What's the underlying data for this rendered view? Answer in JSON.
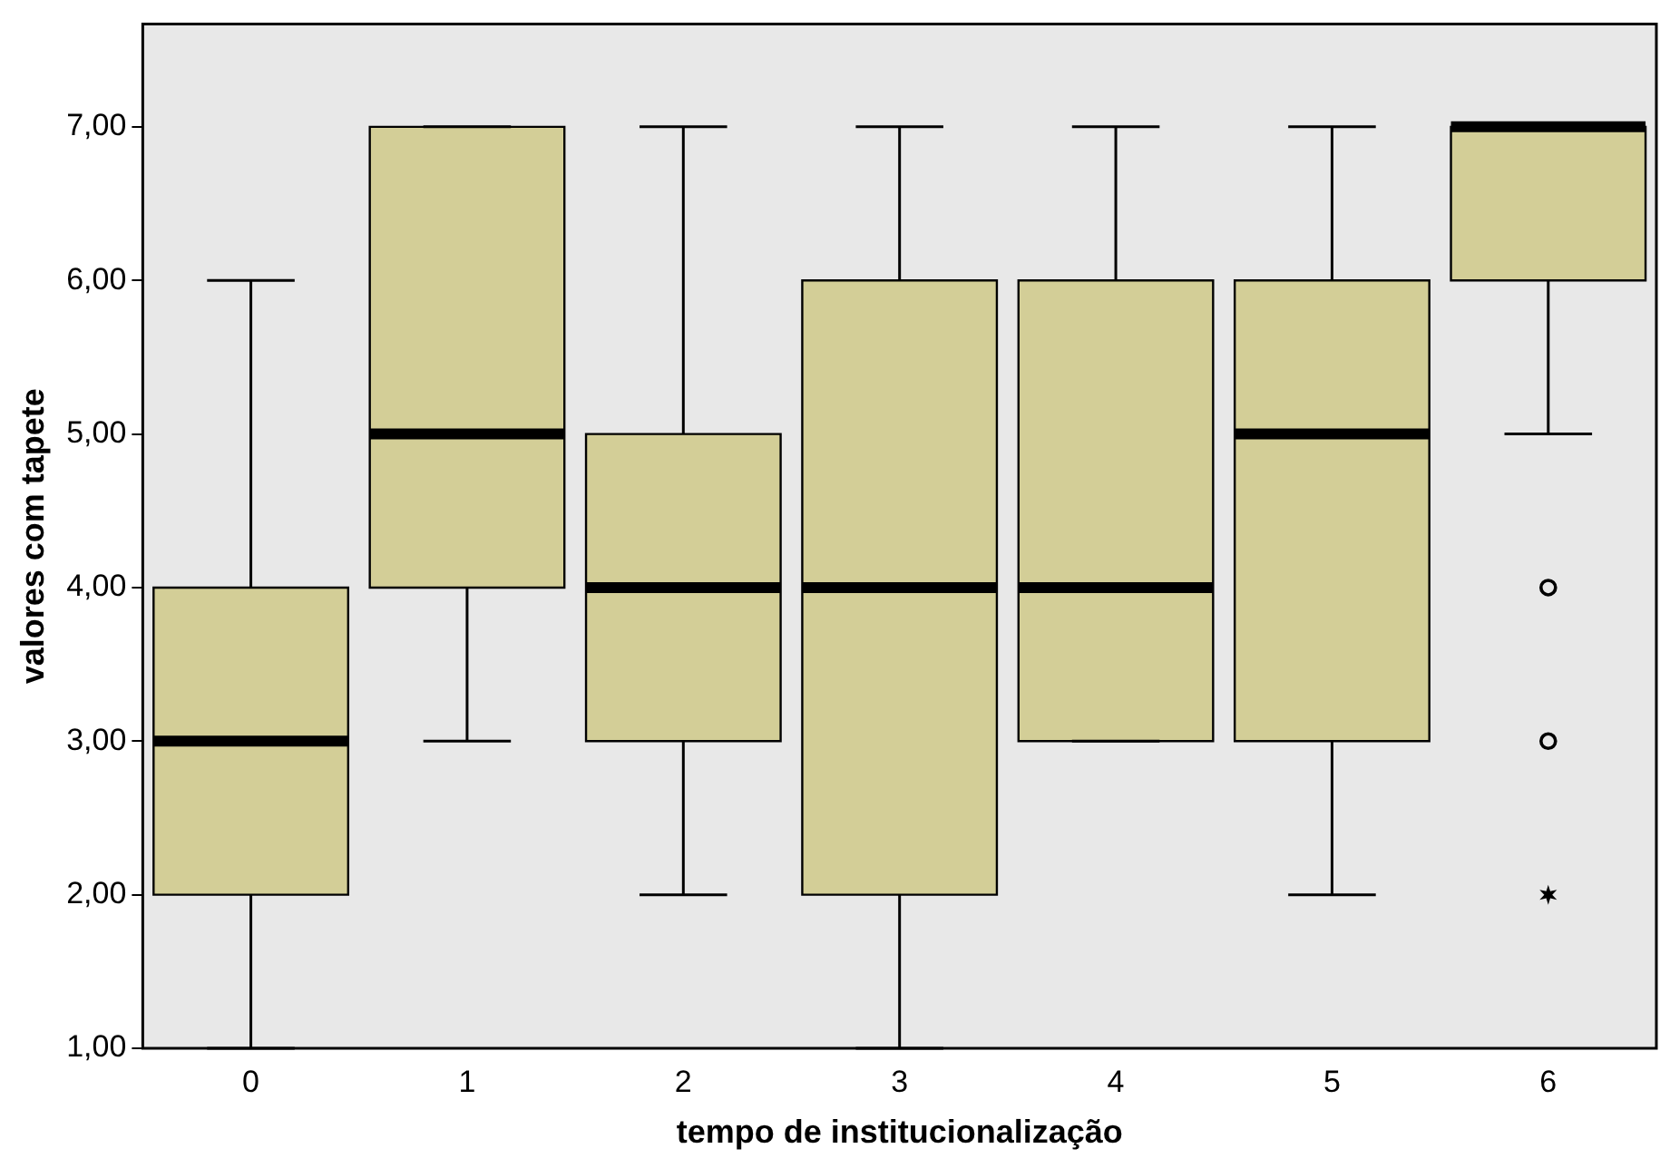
{
  "chart_data": {
    "type": "box",
    "xlabel": "tempo de institucionalização",
    "ylabel": "valores com tapete",
    "categories": [
      "0",
      "1",
      "2",
      "3",
      "4",
      "5",
      "6"
    ],
    "color": "#d3ce97",
    "boxes": [
      {
        "low": 1,
        "q1": 2,
        "median": 3,
        "q3": 4,
        "high": 6
      },
      {
        "low": 3,
        "q1": 4,
        "median": 5,
        "q3": 7,
        "high": 7
      },
      {
        "low": 2,
        "q1": 3,
        "median": 4,
        "q3": 5,
        "high": 7
      },
      {
        "low": 1,
        "q1": 2,
        "median": 4,
        "q3": 6,
        "high": 7
      },
      {
        "low": 3,
        "q1": 3,
        "median": 4,
        "q3": 6,
        "high": 7
      },
      {
        "low": 2,
        "q1": 3,
        "median": 5,
        "q3": 6,
        "high": 7
      },
      {
        "low": 5,
        "q1": 6,
        "median": 7,
        "q3": 7,
        "high": 7,
        "outliers": [
          4,
          3,
          2
        ]
      }
    ],
    "ylim": [
      1,
      7.67
    ],
    "yticks": [
      {
        "value": 1,
        "label": "1,00"
      },
      {
        "value": 2,
        "label": "2,00"
      },
      {
        "value": 3,
        "label": "3,00"
      },
      {
        "value": 4,
        "label": "4,00"
      },
      {
        "value": 5,
        "label": "5,00"
      },
      {
        "value": 6,
        "label": "6,00"
      },
      {
        "value": 7,
        "label": "7,00"
      }
    ],
    "grid": false,
    "legend": false
  }
}
